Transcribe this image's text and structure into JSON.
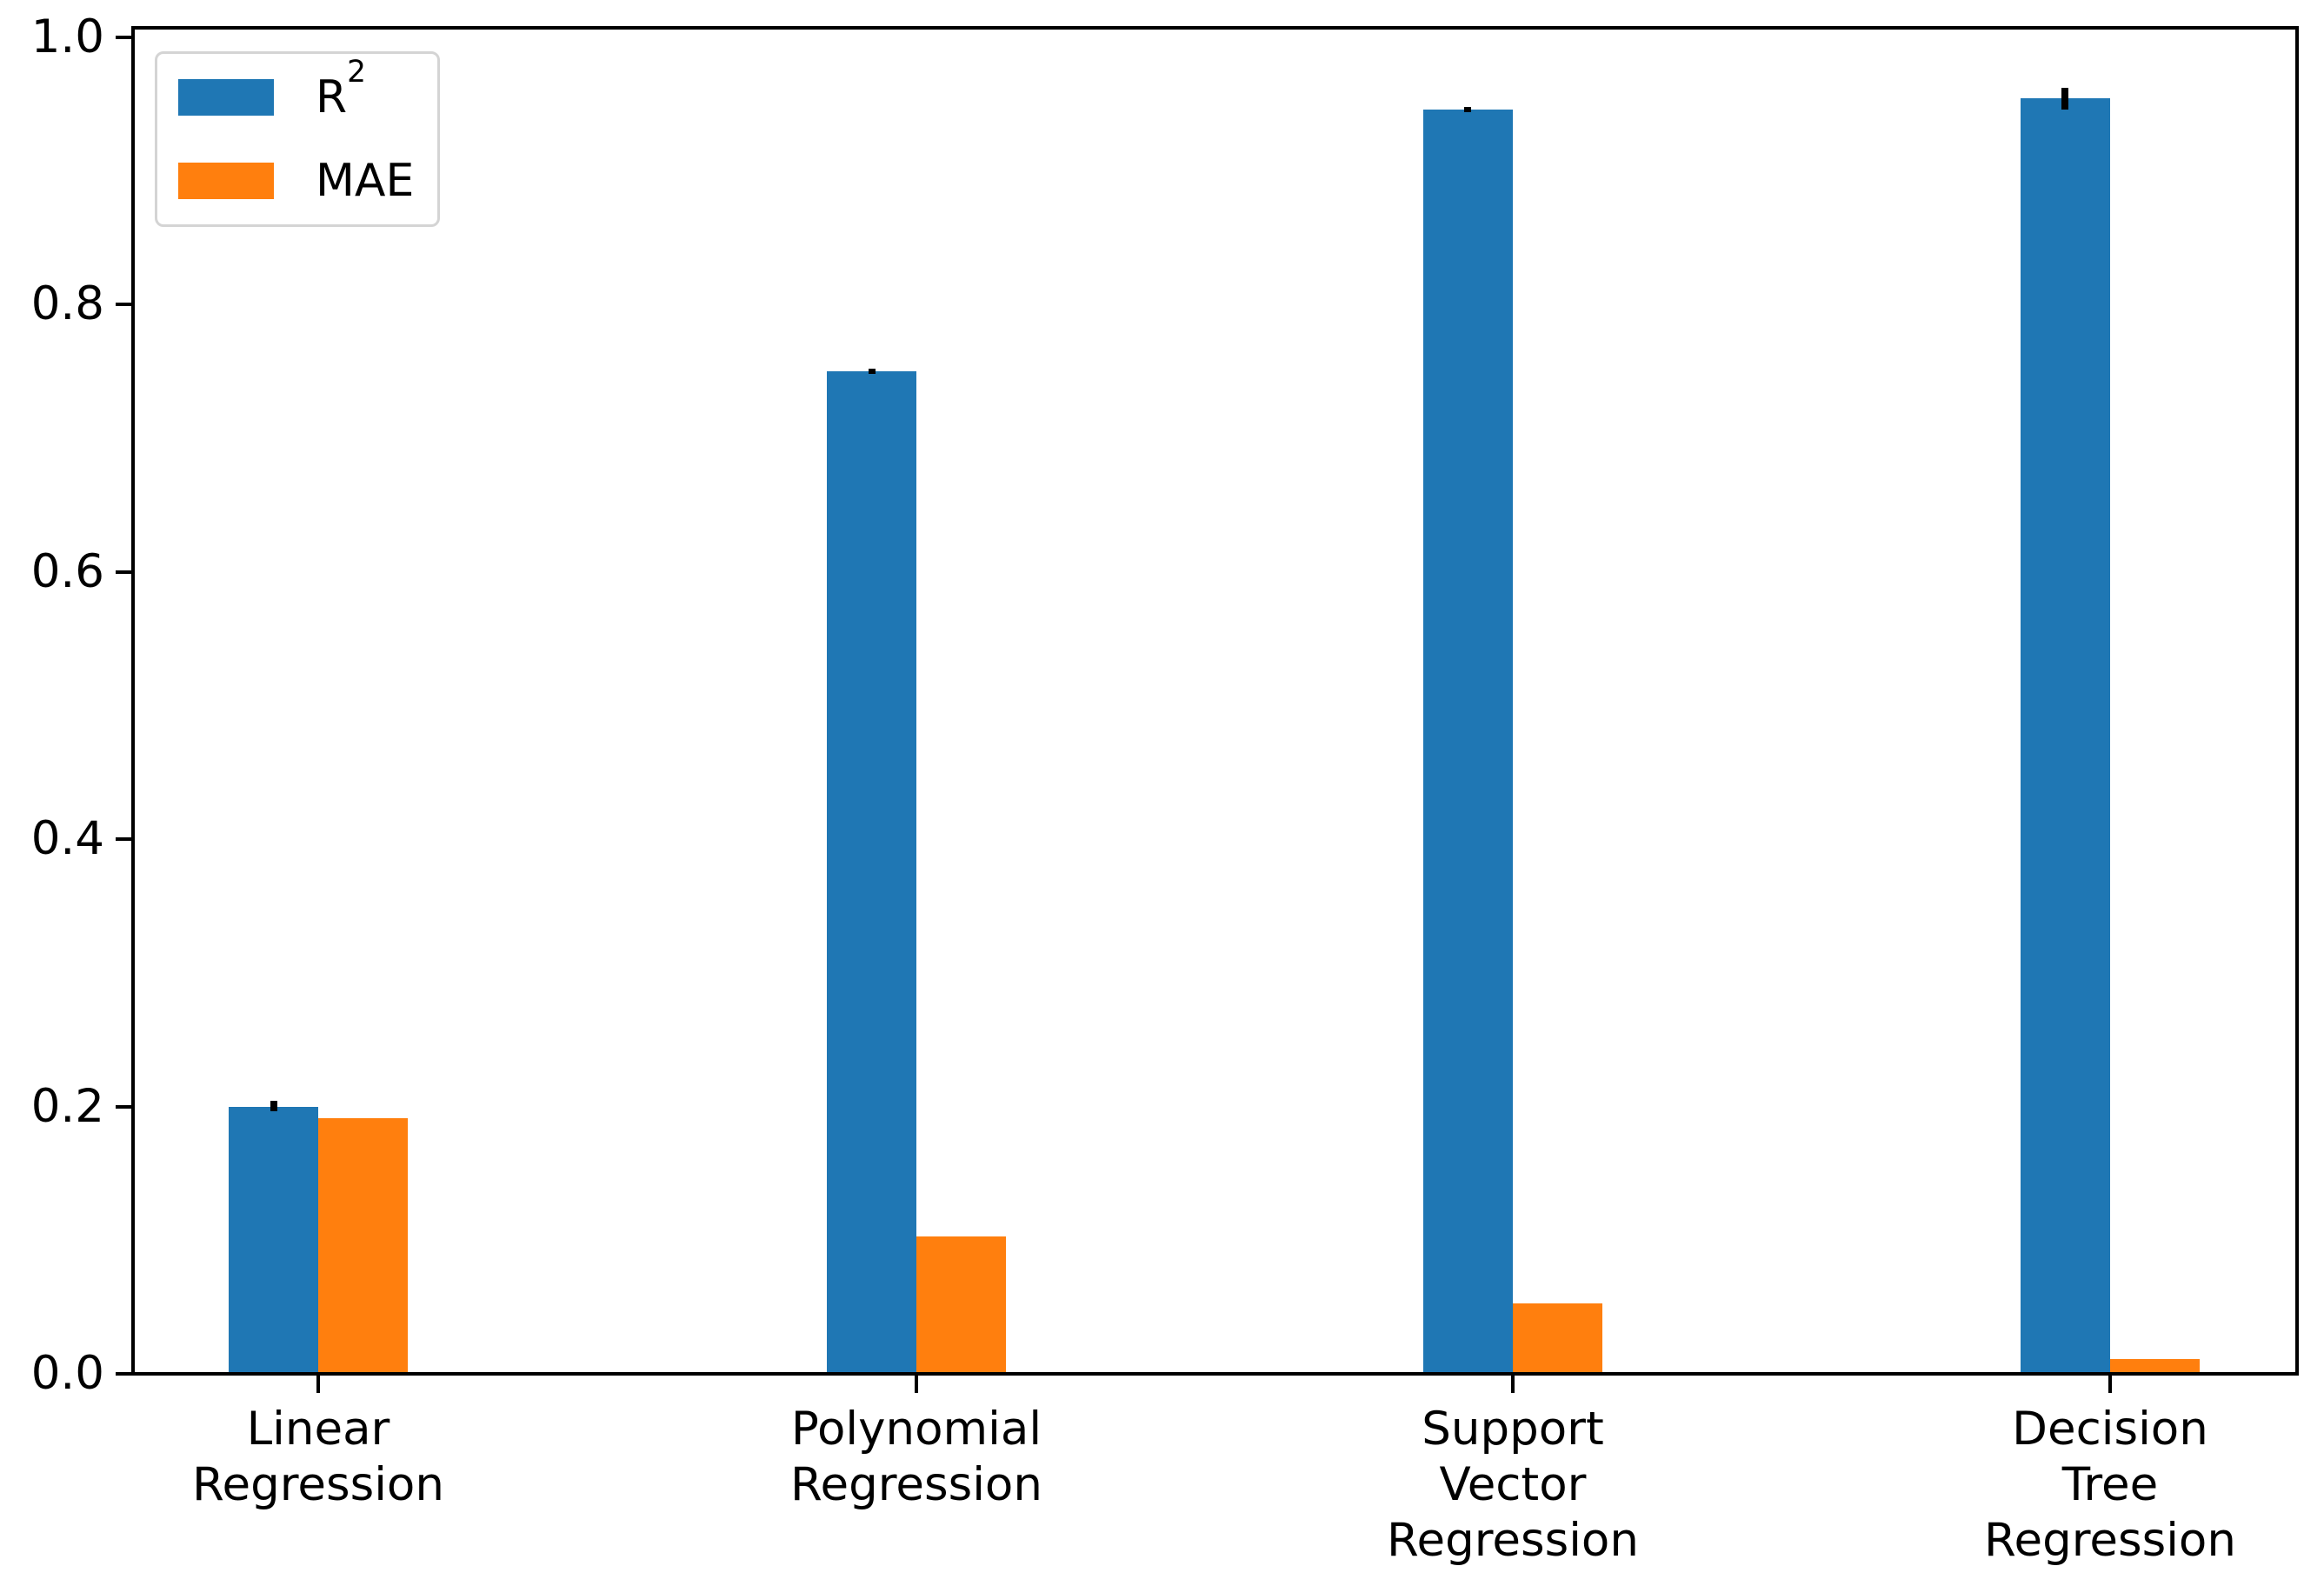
{
  "chart_data": {
    "type": "bar",
    "title": "",
    "xlabel": "",
    "ylabel": "",
    "categories": [
      "Linear\nRegression",
      "Polynomial\nRegression",
      "Support\nVector\nRegression",
      "Decision\nTree\nRegression"
    ],
    "series": [
      {
        "name": "R²",
        "color": "#1f77b4",
        "values": [
          0.2,
          0.75,
          0.946,
          0.954
        ],
        "errors": [
          0.004,
          0.002,
          0.002,
          0.008
        ]
      },
      {
        "name": "MAE",
        "color": "#ff7f0e",
        "values": [
          0.191,
          0.103,
          0.053,
          0.011
        ],
        "errors": [
          0,
          0,
          0,
          0
        ]
      }
    ],
    "y_ticks": [
      "0.0",
      "0.2",
      "0.4",
      "0.6",
      "0.8",
      "1.0"
    ],
    "y_tick_values": [
      0.0,
      0.2,
      0.4,
      0.6,
      0.8,
      1.0
    ],
    "ylim": [
      0,
      1.007
    ],
    "grid": false,
    "legend_position": "upper left",
    "error_bar_color": "#000000",
    "axis_color": "#000000",
    "background_color": "#ffffff"
  }
}
